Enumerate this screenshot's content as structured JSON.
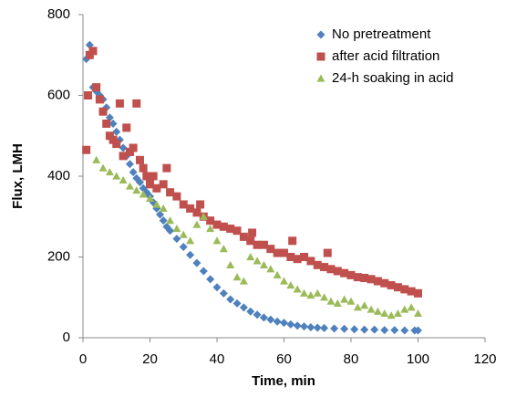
{
  "chart_data": {
    "type": "scatter",
    "xlabel": "Time, min",
    "ylabel": "Flux, LMH",
    "xlim": [
      0,
      120
    ],
    "xticks": [
      0,
      20,
      40,
      60,
      80,
      100,
      120
    ],
    "ylim": [
      0,
      800
    ],
    "yticks": [
      0,
      200,
      400,
      600,
      800
    ],
    "legend": "upper right",
    "series": [
      {
        "name": "No pretreatment",
        "color": "#4f81bd",
        "marker": "diamond",
        "x": [
          1,
          2,
          3,
          4,
          5,
          6,
          7,
          8,
          9,
          10,
          11,
          12,
          13,
          14,
          15,
          16,
          17,
          18,
          19,
          20,
          21,
          22,
          23,
          24,
          25,
          26,
          28,
          30,
          32,
          34,
          36,
          38,
          40,
          42,
          44,
          46,
          48,
          50,
          52,
          54,
          56,
          58,
          60,
          62,
          64,
          66,
          68,
          70,
          72,
          75,
          78,
          81,
          84,
          87,
          90,
          93,
          96,
          99,
          100
        ],
        "values": [
          690,
          725,
          620,
          610,
          600,
          590,
          570,
          545,
          530,
          510,
          490,
          470,
          450,
          430,
          410,
          395,
          385,
          370,
          360,
          350,
          335,
          320,
          305,
          290,
          275,
          265,
          245,
          225,
          205,
          185,
          165,
          145,
          125,
          110,
          95,
          85,
          75,
          65,
          57,
          50,
          45,
          40,
          37,
          33,
          30,
          28,
          26,
          25,
          24,
          23,
          22,
          21,
          20,
          20,
          19,
          19,
          18,
          18,
          18
        ]
      },
      {
        "name": "after acid filtration",
        "color": "#c0504d",
        "marker": "square",
        "x": [
          1,
          1.5,
          2,
          3,
          4,
          5,
          6,
          7,
          8,
          9,
          10,
          11,
          12,
          13,
          14,
          15,
          16,
          17,
          18,
          19,
          20,
          21,
          22,
          24,
          25,
          26,
          28,
          30,
          32,
          34,
          35,
          36,
          38,
          40,
          42,
          44,
          46,
          48,
          50,
          50.5,
          52,
          54,
          56,
          58,
          60,
          62,
          62.5,
          64,
          66,
          68,
          70,
          72,
          73,
          74,
          76,
          78,
          80,
          82,
          84,
          86,
          88,
          90,
          92,
          94,
          96,
          98,
          100
        ],
        "values": [
          465,
          600,
          700,
          710,
          620,
          590,
          560,
          530,
          500,
          490,
          480,
          580,
          450,
          520,
          460,
          470,
          580,
          440,
          420,
          400,
          380,
          400,
          370,
          380,
          420,
          360,
          350,
          330,
          320,
          310,
          330,
          300,
          290,
          280,
          275,
          270,
          265,
          250,
          240,
          260,
          230,
          230,
          220,
          210,
          210,
          200,
          240,
          195,
          200,
          190,
          180,
          175,
          210,
          170,
          165,
          160,
          155,
          150,
          148,
          145,
          140,
          135,
          130,
          125,
          120,
          115,
          110
        ]
      },
      {
        "name": "24-h soaking in acid",
        "color": "#9bbb59",
        "marker": "triangle",
        "x": [
          4,
          6,
          8,
          10,
          12,
          14,
          16,
          18,
          20,
          22,
          24,
          26,
          28,
          30,
          32,
          34,
          36,
          38,
          40,
          42,
          44,
          46,
          48,
          50,
          52,
          54,
          56,
          58,
          60,
          62,
          64,
          66,
          68,
          70,
          72,
          74,
          76,
          78,
          80,
          82,
          84,
          86,
          88,
          90,
          92,
          94,
          96,
          98,
          100
        ],
        "values": [
          440,
          420,
          410,
          400,
          390,
          375,
          365,
          355,
          345,
          330,
          320,
          290,
          270,
          255,
          240,
          280,
          300,
          270,
          240,
          220,
          180,
          150,
          140,
          200,
          190,
          180,
          170,
          155,
          140,
          130,
          120,
          110,
          105,
          110,
          100,
          90,
          85,
          95,
          90,
          75,
          80,
          70,
          65,
          60,
          55,
          60,
          70,
          75,
          60
        ]
      }
    ]
  }
}
